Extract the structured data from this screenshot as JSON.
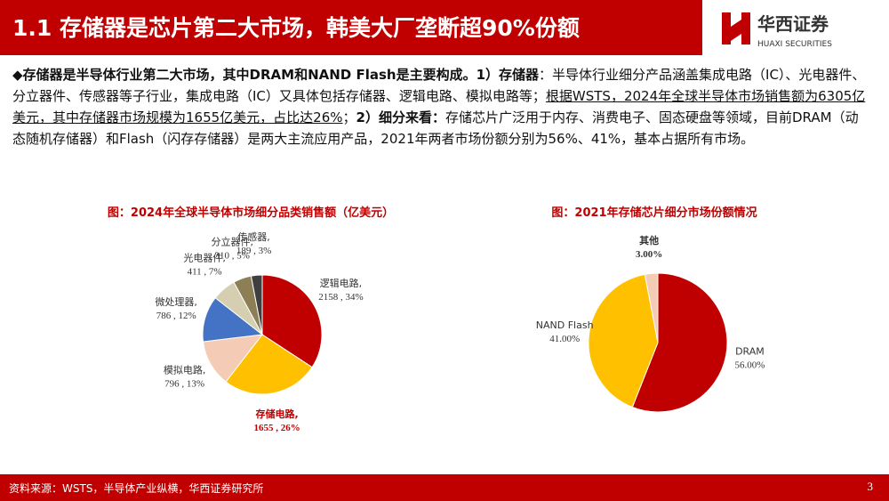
{
  "header": {
    "title": "1.1 存储器是芯片第二大市场，韩美大厂垄断超90%份额",
    "logo_cn": "华西证券",
    "logo_en": "HUAXI SECURITIES"
  },
  "body": {
    "segments": [
      {
        "text": "◆存储器是半导体行业第二大市场，其中DRAM和NAND  Flash是主要构成。1）存储器",
        "bold": true,
        "underline": false
      },
      {
        "text": "：半导体行业细分产品涵盖集成电路（IC）、光电器件、分立器件、传感器等子行业，集成电路（IC）又具体包括存储器、逻辑电路、模拟电路等；",
        "bold": false,
        "underline": false
      },
      {
        "text": "根据WSTS，2024年全球半导体市场销售额为6305亿美元，其中存储器市场规模为1655亿美元，占比达26%",
        "bold": false,
        "underline": true
      },
      {
        "text": "；",
        "bold": false,
        "underline": false
      },
      {
        "text": "2）细分来看：",
        "bold": true,
        "underline": false
      },
      {
        "text": "存储芯片广泛用于内存、消费电子、固态硬盘等领域，目前DRAM（动态随机存储器）和Flash（闪存存储器）是两大主流应用产品，2021年两者市场份额分别为56%、41%，基本占据所有市场。",
        "bold": false,
        "underline": false
      }
    ]
  },
  "chart_data": [
    {
      "type": "pie",
      "title": "图：2024年全球半导体市场细分品类销售额（亿美元）",
      "categories": [
        "逻辑电路,",
        "存储电路,",
        "模拟电路,",
        "微处理器,",
        "光电器件,",
        "分立器件,",
        "传感器,"
      ],
      "values": [
        2158,
        1655,
        796,
        786,
        411,
        310,
        189
      ],
      "value_labels": [
        "2158 , 34%",
        "1655 , 26%",
        "796 , 13%",
        "786 , 12%",
        "411 , 7%",
        "310 , 5%",
        "189 , 3%"
      ],
      "colors": [
        "#c00000",
        "#ffc000",
        "#f4cbb4",
        "#4472c4",
        "#d6ceb0",
        "#8c7f55",
        "#3f3f3f"
      ]
    },
    {
      "type": "pie",
      "title": "图：2021年存储芯片细分市场份额情况",
      "categories": [
        "DRAM",
        "NAND Flash",
        "其他"
      ],
      "values": [
        56,
        41,
        3
      ],
      "value_labels": [
        "56.00%",
        "41.00%",
        "3.00%"
      ],
      "colors": [
        "#c00000",
        "#ffc000",
        "#f4cbb4"
      ]
    }
  ],
  "footer": {
    "source": "资料来源：WSTS，半导体产业纵横，华西证券研究所",
    "page": "3"
  }
}
